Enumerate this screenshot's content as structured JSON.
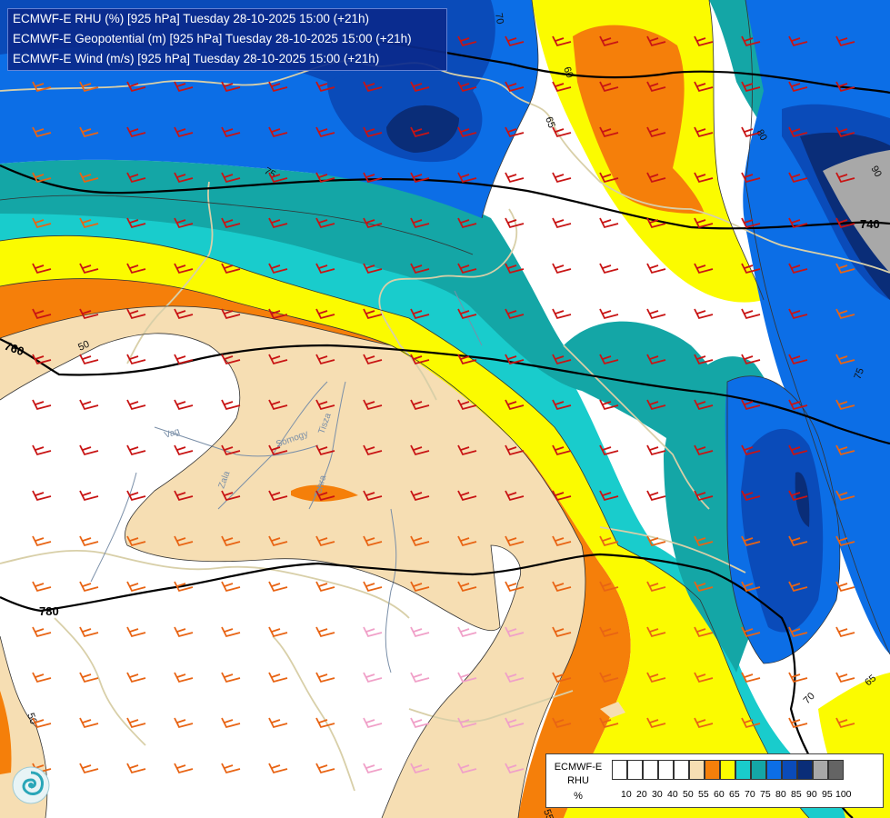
{
  "titles": {
    "line1": "ECMWF-E RHU (%) [925 hPa] Tuesday 28-10-2025 15:00 (+21h)",
    "line2": "ECMWF-E Geopotential (m) [925 hPa] Tuesday 28-10-2025 15:00 (+21h)",
    "line3": "ECMWF-E Wind (m/s) [925 hPa] Tuesday 28-10-2025 15:00 (+21h)"
  },
  "legend": {
    "source": "ECMWF-E",
    "variable": "RHU",
    "unit": "%",
    "ticks": [
      "10",
      "20",
      "30",
      "40",
      "50",
      "55",
      "60",
      "65",
      "70",
      "75",
      "80",
      "85",
      "90",
      "95",
      "100"
    ],
    "colors": [
      "#ffffff",
      "#ffffff",
      "#ffffff",
      "#ffffff",
      "#ffffff",
      "#f6deb3",
      "#f57f0a",
      "#fbfb00",
      "#19cccc",
      "#14a6a6",
      "#0c6ee6",
      "#0a4bb9",
      "#0a2d78",
      "#a8a8a8",
      "#646464"
    ]
  },
  "geopotential_labels": [
    "740",
    "760",
    "780"
  ],
  "rhu_contour_labels": [
    "50",
    "55",
    "60",
    "65",
    "70",
    "75",
    "80",
    "90"
  ],
  "rivers": [
    "Vag",
    "Somogy",
    "Zala",
    "Tohra",
    "Tisza"
  ],
  "colors": {
    "rhu_50_55": "#f6deb3",
    "rhu_55_60": "#f57f0a",
    "rhu_60_65": "#fbfb00",
    "rhu_65_70": "#19cccc",
    "rhu_70_75": "#14a6a6",
    "rhu_75_80": "#0c6ee6",
    "rhu_80_85": "#0a4bb9",
    "rhu_85_90": "#0a2d78",
    "rhu_90_95": "#a8a8a8",
    "wind_barb_light": "#e86414",
    "wind_barb_strong": "#c81414",
    "wind_barb_pale": "#f0a0c8"
  }
}
